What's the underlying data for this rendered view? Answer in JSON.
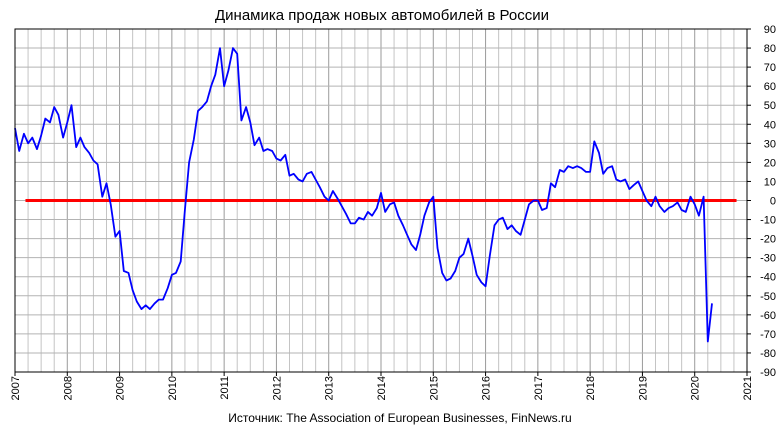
{
  "chart_data": {
    "type": "line",
    "title": "Динамика продаж новых автомобилей в России",
    "source": "Источник: The Association of European Businesses, FinNews.ru",
    "ylim": [
      -90,
      90
    ],
    "yticks": [
      90,
      80,
      70,
      60,
      50,
      40,
      30,
      20,
      10,
      0,
      -10,
      -20,
      -30,
      -40,
      -50,
      -60,
      -70,
      -80,
      -90
    ],
    "xlim": [
      2007,
      2021
    ],
    "xticks": [
      "2007",
      "2008",
      "2009",
      "2010",
      "2011",
      "2012",
      "2013",
      "2014",
      "2015",
      "2016",
      "2017",
      "2018",
      "2019",
      "2020",
      "2021"
    ],
    "grid": true,
    "reference_line": {
      "y": 0,
      "x_start": 2007.2,
      "x_end": 2020.8,
      "color": "#ff0000"
    },
    "series": [
      {
        "color": "#0000ff",
        "points": [
          [
            2007.0,
            38
          ],
          [
            2007.08,
            26
          ],
          [
            2007.17,
            35
          ],
          [
            2007.25,
            30
          ],
          [
            2007.33,
            33
          ],
          [
            2007.42,
            27
          ],
          [
            2007.5,
            34
          ],
          [
            2007.58,
            43
          ],
          [
            2007.67,
            41
          ],
          [
            2007.75,
            49
          ],
          [
            2007.83,
            45
          ],
          [
            2007.92,
            33
          ],
          [
            2008.0,
            41
          ],
          [
            2008.08,
            50
          ],
          [
            2008.17,
            28
          ],
          [
            2008.25,
            33
          ],
          [
            2008.33,
            28
          ],
          [
            2008.42,
            25
          ],
          [
            2008.5,
            21
          ],
          [
            2008.58,
            19
          ],
          [
            2008.67,
            2
          ],
          [
            2008.75,
            9
          ],
          [
            2008.83,
            -2
          ],
          [
            2008.92,
            -19
          ],
          [
            2009.0,
            -16
          ],
          [
            2009.08,
            -37
          ],
          [
            2009.17,
            -38
          ],
          [
            2009.25,
            -47
          ],
          [
            2009.33,
            -53
          ],
          [
            2009.42,
            -57
          ],
          [
            2009.5,
            -55
          ],
          [
            2009.58,
            -57
          ],
          [
            2009.67,
            -54
          ],
          [
            2009.75,
            -52
          ],
          [
            2009.83,
            -52
          ],
          [
            2009.92,
            -46
          ],
          [
            2010.0,
            -39
          ],
          [
            2010.08,
            -38
          ],
          [
            2010.17,
            -32
          ],
          [
            2010.25,
            -5
          ],
          [
            2010.33,
            20
          ],
          [
            2010.42,
            32
          ],
          [
            2010.5,
            47
          ],
          [
            2010.58,
            49
          ],
          [
            2010.67,
            52
          ],
          [
            2010.75,
            60
          ],
          [
            2010.83,
            66
          ],
          [
            2010.92,
            80
          ],
          [
            2011.0,
            60
          ],
          [
            2011.08,
            68
          ],
          [
            2011.17,
            80
          ],
          [
            2011.25,
            77
          ],
          [
            2011.33,
            42
          ],
          [
            2011.42,
            49
          ],
          [
            2011.5,
            41
          ],
          [
            2011.58,
            29
          ],
          [
            2011.67,
            33
          ],
          [
            2011.75,
            26
          ],
          [
            2011.83,
            27
          ],
          [
            2011.92,
            26
          ],
          [
            2012.0,
            22
          ],
          [
            2012.08,
            21
          ],
          [
            2012.17,
            24
          ],
          [
            2012.25,
            13
          ],
          [
            2012.33,
            14
          ],
          [
            2012.42,
            11
          ],
          [
            2012.5,
            10
          ],
          [
            2012.58,
            14
          ],
          [
            2012.67,
            15
          ],
          [
            2012.75,
            11
          ],
          [
            2012.83,
            7
          ],
          [
            2012.92,
            2
          ],
          [
            2013.0,
            0
          ],
          [
            2013.08,
            5
          ],
          [
            2013.17,
            1
          ],
          [
            2013.25,
            -3
          ],
          [
            2013.33,
            -7
          ],
          [
            2013.42,
            -12
          ],
          [
            2013.5,
            -12
          ],
          [
            2013.58,
            -9
          ],
          [
            2013.67,
            -10
          ],
          [
            2013.75,
            -6
          ],
          [
            2013.83,
            -8
          ],
          [
            2013.92,
            -4
          ],
          [
            2014.0,
            4
          ],
          [
            2014.08,
            -6
          ],
          [
            2014.17,
            -2
          ],
          [
            2014.25,
            -1
          ],
          [
            2014.33,
            -8
          ],
          [
            2014.42,
            -13
          ],
          [
            2014.5,
            -18
          ],
          [
            2014.58,
            -23
          ],
          [
            2014.67,
            -26
          ],
          [
            2014.75,
            -18
          ],
          [
            2014.83,
            -8
          ],
          [
            2014.92,
            -1
          ],
          [
            2015.0,
            2
          ],
          [
            2015.08,
            -25
          ],
          [
            2015.17,
            -38
          ],
          [
            2015.25,
            -42
          ],
          [
            2015.33,
            -41
          ],
          [
            2015.42,
            -37
          ],
          [
            2015.5,
            -30
          ],
          [
            2015.58,
            -28
          ],
          [
            2015.67,
            -20
          ],
          [
            2015.75,
            -29
          ],
          [
            2015.83,
            -39
          ],
          [
            2015.92,
            -43
          ],
          [
            2016.0,
            -45
          ],
          [
            2016.08,
            -29
          ],
          [
            2016.17,
            -13
          ],
          [
            2016.25,
            -10
          ],
          [
            2016.33,
            -9
          ],
          [
            2016.42,
            -15
          ],
          [
            2016.5,
            -13
          ],
          [
            2016.58,
            -16
          ],
          [
            2016.67,
            -18
          ],
          [
            2016.75,
            -10
          ],
          [
            2016.83,
            -2
          ],
          [
            2016.92,
            0
          ],
          [
            2017.0,
            0
          ],
          [
            2017.08,
            -5
          ],
          [
            2017.17,
            -4
          ],
          [
            2017.25,
            9
          ],
          [
            2017.33,
            7
          ],
          [
            2017.42,
            16
          ],
          [
            2017.5,
            15
          ],
          [
            2017.58,
            18
          ],
          [
            2017.67,
            17
          ],
          [
            2017.75,
            18
          ],
          [
            2017.83,
            17
          ],
          [
            2017.92,
            15
          ],
          [
            2018.0,
            15
          ],
          [
            2018.08,
            31
          ],
          [
            2018.17,
            25
          ],
          [
            2018.25,
            14
          ],
          [
            2018.33,
            17
          ],
          [
            2018.42,
            18
          ],
          [
            2018.5,
            11
          ],
          [
            2018.58,
            10
          ],
          [
            2018.67,
            11
          ],
          [
            2018.75,
            6
          ],
          [
            2018.83,
            8
          ],
          [
            2018.92,
            10
          ],
          [
            2019.0,
            5
          ],
          [
            2019.08,
            0
          ],
          [
            2019.17,
            -3
          ],
          [
            2019.25,
            2
          ],
          [
            2019.33,
            -3
          ],
          [
            2019.42,
            -6
          ],
          [
            2019.5,
            -4
          ],
          [
            2019.58,
            -3
          ],
          [
            2019.67,
            -1
          ],
          [
            2019.75,
            -5
          ],
          [
            2019.83,
            -6
          ],
          [
            2019.92,
            2
          ],
          [
            2020.0,
            -2
          ],
          [
            2020.08,
            -8
          ],
          [
            2020.17,
            2
          ],
          [
            2020.25,
            -74
          ],
          [
            2020.33,
            -54
          ]
        ]
      }
    ]
  }
}
